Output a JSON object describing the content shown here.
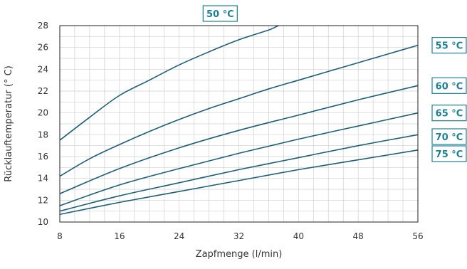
{
  "chart_data": {
    "type": "line",
    "xlabel": "Zapfmenge (l/min)",
    "ylabel": "Rücklauftemperatur (° C)",
    "xlim": [
      8,
      56
    ],
    "ylim": [
      10,
      28
    ],
    "xticks": [
      8,
      16,
      24,
      32,
      40,
      48,
      56
    ],
    "yticks": [
      10,
      12,
      14,
      16,
      18,
      20,
      22,
      24,
      26,
      28
    ],
    "grid": true,
    "line_color": "#1e5f74",
    "label_color": "#1e7f93",
    "series": [
      {
        "name": "50 °C",
        "x": [
          8,
          12,
          16,
          20,
          24,
          28,
          32,
          36,
          37.3
        ],
        "y": [
          17.5,
          19.6,
          21.6,
          23.0,
          24.4,
          25.6,
          26.7,
          27.6,
          28.0
        ]
      },
      {
        "name": "55 °C",
        "x": [
          8,
          12,
          16,
          20,
          24,
          28,
          32,
          36,
          40,
          44,
          48,
          52,
          56
        ],
        "y": [
          14.2,
          15.8,
          17.1,
          18.3,
          19.4,
          20.4,
          21.3,
          22.2,
          23.0,
          23.8,
          24.6,
          25.4,
          26.2
        ]
      },
      {
        "name": "60 °C",
        "x": [
          8,
          16,
          24,
          32,
          40,
          48,
          56
        ],
        "y": [
          12.6,
          14.9,
          16.8,
          18.4,
          19.8,
          21.2,
          22.5
        ]
      },
      {
        "name": "65 °C",
        "x": [
          8,
          16,
          24,
          32,
          40,
          48,
          56
        ],
        "y": [
          11.5,
          13.4,
          14.9,
          16.3,
          17.6,
          18.8,
          20.0
        ]
      },
      {
        "name": "70 °C",
        "x": [
          8,
          16,
          24,
          32,
          40,
          48,
          56
        ],
        "y": [
          11.0,
          12.4,
          13.6,
          14.8,
          15.9,
          17.0,
          18.0
        ]
      },
      {
        "name": "75 °C",
        "x": [
          8,
          16,
          24,
          32,
          40,
          48,
          56
        ],
        "y": [
          10.7,
          11.8,
          12.8,
          13.8,
          14.8,
          15.7,
          16.6
        ]
      }
    ]
  }
}
